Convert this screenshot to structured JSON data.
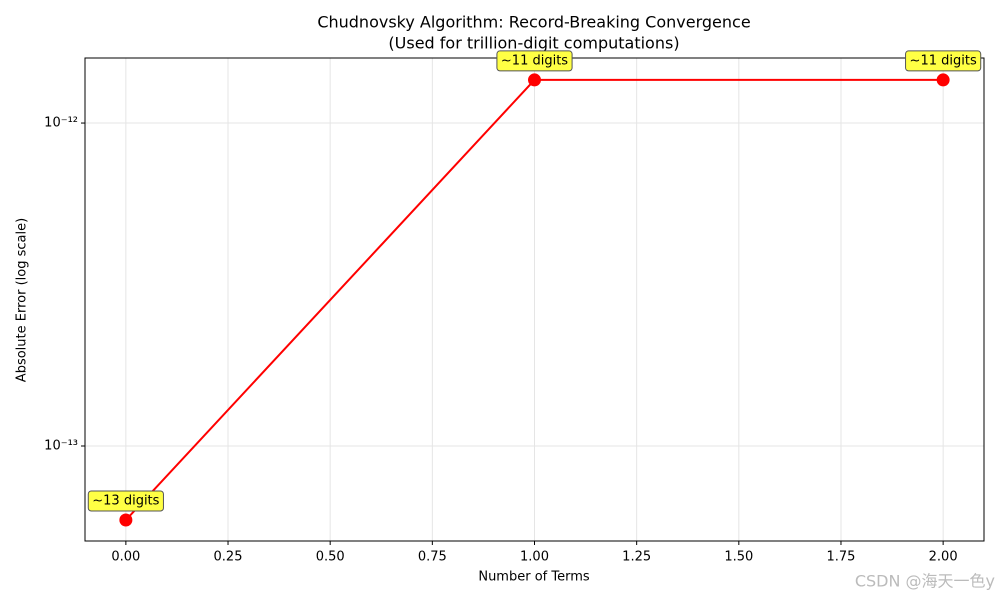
{
  "chart_data": {
    "type": "line",
    "title": "Chudnovsky Algorithm: Record-Breaking Convergence",
    "subtitle": "(Used for trillion-digit computations)",
    "x_label": "Number of Terms",
    "y_label": "Absolute Error (log scale)",
    "x": [
      0,
      1,
      2
    ],
    "series": [
      {
        "color": "#ff0000",
        "values": [
          5.9e-14,
          1.36e-12,
          1.36e-12
        ],
        "value_labels": [
          "~13 digits",
          "~11 digits",
          "~11 digits"
        ]
      }
    ],
    "xlim": [
      -0.1,
      2.1
    ],
    "ylim": [
      5.08e-14,
      1.59e-12
    ],
    "y_scale": "log",
    "grid": true,
    "xticks": [
      {
        "value": 0,
        "label": "0.00"
      },
      {
        "value": 0.25,
        "label": "0.25"
      },
      {
        "value": 0.5,
        "label": "0.50"
      },
      {
        "value": 0.75,
        "label": "0.75"
      },
      {
        "value": 1,
        "label": "1.00"
      },
      {
        "value": 1.25,
        "label": "1.25"
      },
      {
        "value": 1.5,
        "label": "1.50"
      },
      {
        "value": 1.75,
        "label": "1.75"
      },
      {
        "value": 2,
        "label": "2.00"
      }
    ],
    "yticks": [
      {
        "value": 1e-13,
        "label": "10⁻¹³"
      },
      {
        "value": 1e-12,
        "label": "10⁻¹²"
      }
    ],
    "watermark": "CSDN @海天一色y"
  }
}
